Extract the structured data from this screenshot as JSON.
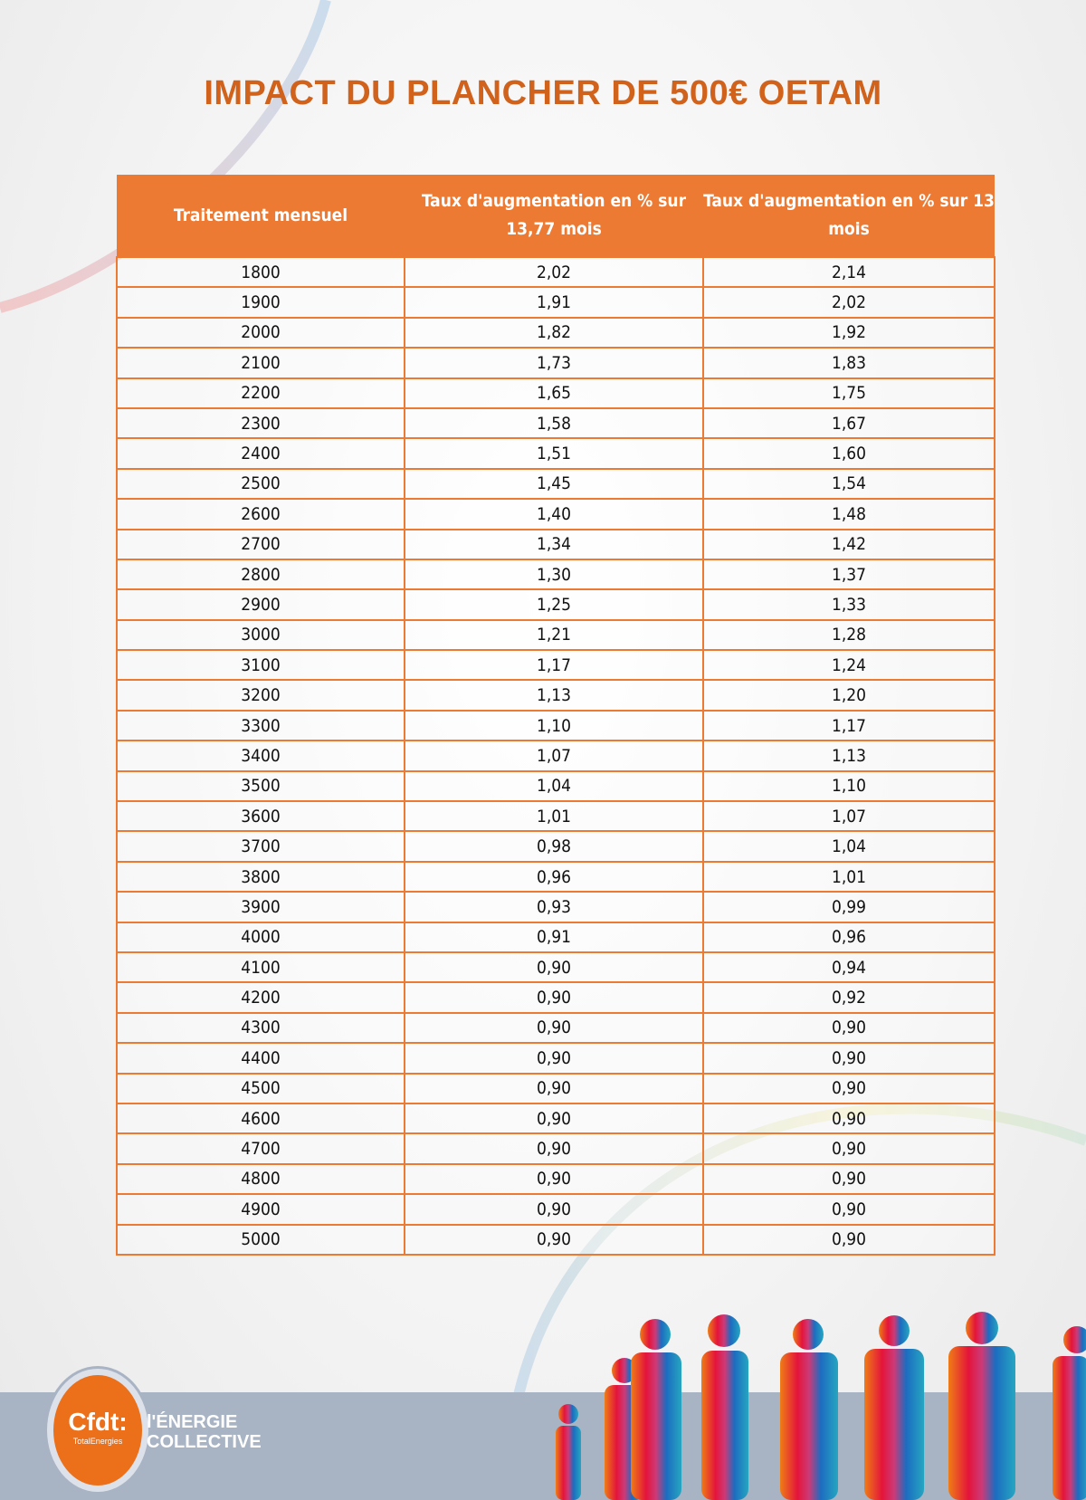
{
  "title": "IMPACT DU PLANCHER DE 500€ OETAM",
  "table": {
    "headers": [
      "Traitement mensuel",
      "Taux d'augmentation en % sur 13,77 mois",
      "Taux d'augmentation en % sur 13 mois"
    ],
    "rows": [
      [
        "1800",
        "2,02",
        "2,14"
      ],
      [
        "1900",
        "1,91",
        "2,02"
      ],
      [
        "2000",
        "1,82",
        "1,92"
      ],
      [
        "2100",
        "1,73",
        "1,83"
      ],
      [
        "2200",
        "1,65",
        "1,75"
      ],
      [
        "2300",
        "1,58",
        "1,67"
      ],
      [
        "2400",
        "1,51",
        "1,60"
      ],
      [
        "2500",
        "1,45",
        "1,54"
      ],
      [
        "2600",
        "1,40",
        "1,48"
      ],
      [
        "2700",
        "1,34",
        "1,42"
      ],
      [
        "2800",
        "1,30",
        "1,37"
      ],
      [
        "2900",
        "1,25",
        "1,33"
      ],
      [
        "3000",
        "1,21",
        "1,28"
      ],
      [
        "3100",
        "1,17",
        "1,24"
      ],
      [
        "3200",
        "1,13",
        "1,20"
      ],
      [
        "3300",
        "1,10",
        "1,17"
      ],
      [
        "3400",
        "1,07",
        "1,13"
      ],
      [
        "3500",
        "1,04",
        "1,10"
      ],
      [
        "3600",
        "1,01",
        "1,07"
      ],
      [
        "3700",
        "0,98",
        "1,04"
      ],
      [
        "3800",
        "0,96",
        "1,01"
      ],
      [
        "3900",
        "0,93",
        "0,99"
      ],
      [
        "4000",
        "0,91",
        "0,96"
      ],
      [
        "4100",
        "0,90",
        "0,94"
      ],
      [
        "4200",
        "0,90",
        "0,92"
      ],
      [
        "4300",
        "0,90",
        "0,90"
      ],
      [
        "4400",
        "0,90",
        "0,90"
      ],
      [
        "4500",
        "0,90",
        "0,90"
      ],
      [
        "4600",
        "0,90",
        "0,90"
      ],
      [
        "4700",
        "0,90",
        "0,90"
      ],
      [
        "4800",
        "0,90",
        "0,90"
      ],
      [
        "4900",
        "0,90",
        "0,90"
      ],
      [
        "5000",
        "0,90",
        "0,90"
      ]
    ]
  },
  "footer": {
    "logo_main": "Cfdt:",
    "logo_sub": "TotalEnergies",
    "tagline_1": "l'ÉNERGIE",
    "tagline_2": "COLLECTIVE"
  },
  "colors": {
    "accent": "#ec7a32",
    "title": "#d0621c",
    "footer_band": "#a8b3c4"
  }
}
